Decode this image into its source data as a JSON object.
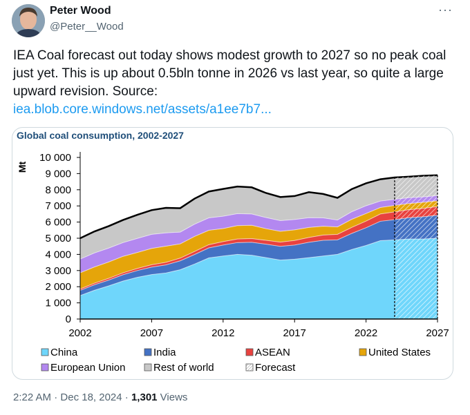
{
  "author": {
    "name": "Peter Wood",
    "handle": "@Peter__Wood"
  },
  "tweet": {
    "text": "IEA Coal forecast out today shows modest growth to 2027 so no peak coal just yet. This is up about 0.5bln tonne in 2026 vs last year, so quite a large upward revision.  Source:",
    "link_text": "iea.blob.core.windows.net/assets/a1ee7b7..."
  },
  "footer": {
    "time": "2:22 AM",
    "sep1": " · ",
    "date": "Dec 18, 2024",
    "sep2": " · ",
    "views_count": "1,301",
    "views_label": " Views"
  },
  "chart_data": {
    "type": "area",
    "title": "Global coal consumption, 2002-2027",
    "ylabel": "Mt",
    "ylim": [
      0,
      10000
    ],
    "yticks": [
      "0",
      "1 000",
      "2 000",
      "3 000",
      "4 000",
      "5 000",
      "6 000",
      "7 000",
      "8 000",
      "9 000",
      "10 000"
    ],
    "xticks": [
      "2002",
      "2007",
      "2012",
      "2017",
      "2022",
      "2027"
    ],
    "forecast_start": 2024,
    "stacked": true,
    "x": [
      2002,
      2003,
      2004,
      2005,
      2006,
      2007,
      2008,
      2009,
      2010,
      2011,
      2012,
      2013,
      2014,
      2015,
      2016,
      2017,
      2018,
      2019,
      2020,
      2021,
      2022,
      2023,
      2024,
      2025,
      2026,
      2027
    ],
    "series": [
      {
        "name": "China",
        "color": "#6fd6fb",
        "values": [
          1450,
          1780,
          2050,
          2350,
          2580,
          2750,
          2850,
          3050,
          3400,
          3780,
          3900,
          4000,
          3950,
          3800,
          3650,
          3700,
          3800,
          3900,
          4000,
          4300,
          4550,
          4850,
          4900,
          4950,
          4950,
          5000
        ]
      },
      {
        "name": "India",
        "color": "#4472c4",
        "values": [
          320,
          340,
          360,
          390,
          420,
          460,
          500,
          550,
          590,
          620,
          680,
          730,
          800,
          830,
          850,
          880,
          950,
          970,
          900,
          1000,
          1100,
          1200,
          1250,
          1320,
          1380,
          1420
        ]
      },
      {
        "name": "ASEAN",
        "color": "#e8423f",
        "values": [
          90,
          100,
          110,
          120,
          130,
          150,
          160,
          170,
          190,
          200,
          210,
          220,
          230,
          240,
          260,
          280,
          300,
          330,
          340,
          370,
          410,
          450,
          480,
          500,
          520,
          540
        ]
      },
      {
        "name": "United States",
        "color": "#e5a50a",
        "values": [
          1000,
          1000,
          1010,
          1020,
          990,
          1010,
          1000,
          880,
          930,
          890,
          810,
          830,
          820,
          720,
          670,
          660,
          620,
          540,
          460,
          500,
          470,
          400,
          400,
          380,
          370,
          360
        ]
      },
      {
        "name": "European Union",
        "color": "#b388f0",
        "values": [
          850,
          870,
          860,
          850,
          870,
          870,
          820,
          730,
          760,
          770,
          760,
          740,
          700,
          690,
          660,
          640,
          600,
          520,
          430,
          470,
          480,
          400,
          380,
          360,
          340,
          320
        ]
      },
      {
        "name": "Rest of world",
        "color": "#c8c8c8",
        "values": [
          1290,
          1330,
          1360,
          1400,
          1460,
          1500,
          1550,
          1480,
          1580,
          1630,
          1690,
          1680,
          1650,
          1520,
          1460,
          1450,
          1580,
          1480,
          1370,
          1400,
          1390,
          1350,
          1350,
          1300,
          1310,
          1260
        ]
      }
    ],
    "legend": [
      "China",
      "India",
      "ASEAN",
      "United States",
      "European Union",
      "Rest of world",
      "Forecast"
    ],
    "legend_colors": [
      "#6fd6fb",
      "#4472c4",
      "#e8423f",
      "#e5a50a",
      "#b388f0",
      "#c8c8c8",
      "hatch"
    ]
  }
}
